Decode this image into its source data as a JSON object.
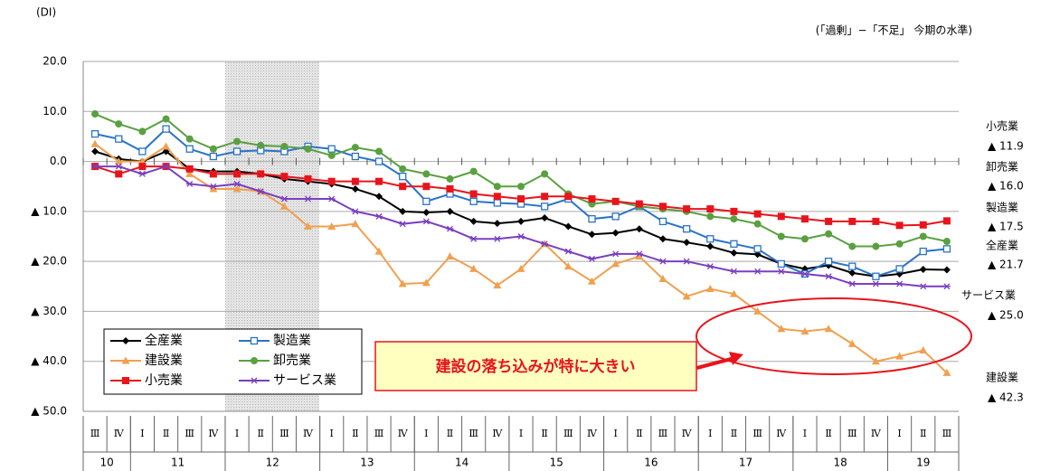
{
  "chart_data": {
    "type": "line",
    "unit_label": "(DI)",
    "subtitle": "(「過剰」−「不足」 今期の水準)",
    "categories": [
      "Ⅲ",
      "Ⅳ",
      "Ⅰ",
      "Ⅱ",
      "Ⅲ",
      "Ⅳ",
      "Ⅰ",
      "Ⅱ",
      "Ⅲ",
      "Ⅳ",
      "Ⅰ",
      "Ⅱ",
      "Ⅲ",
      "Ⅳ",
      "Ⅰ",
      "Ⅱ",
      "Ⅲ",
      "Ⅳ",
      "Ⅰ",
      "Ⅱ",
      "Ⅲ",
      "Ⅳ",
      "Ⅰ",
      "Ⅱ",
      "Ⅲ",
      "Ⅳ",
      "Ⅰ",
      "Ⅱ",
      "Ⅲ",
      "Ⅳ",
      "Ⅰ",
      "Ⅱ",
      "Ⅲ",
      "Ⅳ",
      "Ⅰ",
      "Ⅱ",
      "Ⅲ"
    ],
    "year_labels": [
      "10",
      "11",
      "12",
      "13",
      "14",
      "15",
      "16",
      "17",
      "18",
      "19"
    ],
    "ylim": [
      -50,
      20
    ],
    "yticks": [
      {
        "value": 20,
        "label": "20.0"
      },
      {
        "value": 10,
        "label": "10.0"
      },
      {
        "value": 0,
        "label": "0.0"
      },
      {
        "value": -10,
        "label": "▲ 10.0"
      },
      {
        "value": -20,
        "label": "▲ 20.0"
      },
      {
        "value": -30,
        "label": "▲ 30.0"
      },
      {
        "value": -40,
        "label": "▲ 40.0"
      },
      {
        "value": -50,
        "label": "▲ 50.0"
      }
    ],
    "grid": true,
    "annotation": "建設の落ち込みが特に大きい",
    "series": [
      {
        "name": "全産業",
        "color": "#000000",
        "marker": "diamond",
        "end_label": "▲ 21.7",
        "values": [
          2,
          0.5,
          0,
          2,
          -1.5,
          -2,
          -2,
          -2.5,
          -3.5,
          -4,
          -4.5,
          -5.5,
          -7,
          -10,
          -10.2,
          -10,
          -12,
          -12.4,
          -12,
          -11.3,
          -13,
          -14.6,
          -14.3,
          -13.5,
          -15.5,
          -16.2,
          -17,
          -18.3,
          -18.6,
          -20.5,
          -21.5,
          -20.8,
          -22.3,
          -23,
          -22.5,
          -21.6,
          -21.7
        ]
      },
      {
        "name": "製造業",
        "color": "#2a73c8",
        "marker": "square-open",
        "end_label": "▲ 17.5",
        "values": [
          5.5,
          4.5,
          2,
          6.5,
          2.5,
          1,
          2,
          2.2,
          2,
          3,
          2.5,
          1,
          0,
          -3,
          -8,
          -6.5,
          -8,
          -8.3,
          -8.5,
          -9,
          -7.5,
          -11.5,
          -11,
          -9,
          -12,
          -13.5,
          -15.5,
          -16.5,
          -17.5,
          -20.5,
          -22.5,
          -20,
          -21,
          -23,
          -21.5,
          -18,
          -17.5
        ]
      },
      {
        "name": "建設業",
        "color": "#f0a050",
        "marker": "triangle",
        "end_label": "▲ 42.3",
        "values": [
          3.5,
          0,
          0,
          3,
          -2.5,
          -5.5,
          -5.5,
          -6,
          -9,
          -13,
          -13,
          -12.5,
          -18,
          -24.5,
          -24.3,
          -19,
          -21.5,
          -24.8,
          -21.5,
          -16.5,
          -21,
          -24,
          -20.5,
          -19,
          -23.5,
          -27,
          -25.5,
          -26.5,
          -30,
          -33.5,
          -34,
          -33.5,
          -36.5,
          -40,
          -39,
          -37.8,
          -42.3
        ]
      },
      {
        "name": "卸売業",
        "color": "#5aa040",
        "marker": "circle",
        "end_label": "▲ 16.0",
        "values": [
          9.5,
          7.5,
          6,
          8.5,
          4.5,
          2.5,
          4,
          3.2,
          3,
          2.5,
          1.2,
          2.8,
          2,
          -1.5,
          -2.5,
          -3.5,
          -2,
          -5,
          -5,
          -2.5,
          -6.5,
          -8.5,
          -8,
          -9,
          -9.5,
          -10,
          -11,
          -11.5,
          -12.5,
          -15,
          -15.5,
          -14.5,
          -17,
          -17,
          -16.5,
          -15,
          -16
        ]
      },
      {
        "name": "小売業",
        "color": "#e8141c",
        "marker": "square",
        "end_label": "▲ 11.9",
        "values": [
          -1,
          -2.5,
          -1,
          -1,
          -1.5,
          -2.5,
          -2.5,
          -2.5,
          -3,
          -3.5,
          -4,
          -4,
          -4,
          -5,
          -5,
          -5.5,
          -6.5,
          -7,
          -7.5,
          -7,
          -7,
          -7.5,
          -8,
          -8.5,
          -9,
          -9.5,
          -9.5,
          -10,
          -10.5,
          -11,
          -11.5,
          -12,
          -12,
          -12,
          -12.8,
          -12.7,
          -11.9
        ]
      },
      {
        "name": "サービス業",
        "color": "#7a3fc0",
        "marker": "star",
        "end_label": "▲ 25.0",
        "values": [
          -1,
          -1,
          -2.5,
          -1,
          -4.5,
          -5,
          -4.5,
          -6,
          -7.5,
          -7.5,
          -7.5,
          -10,
          -11,
          -12.5,
          -12,
          -13.5,
          -15.5,
          -15.5,
          -15,
          -16.5,
          -18,
          -19.5,
          -18.5,
          -18.5,
          -20,
          -20,
          -21,
          -22,
          -22,
          -22,
          -22.5,
          -23,
          -24.5,
          -24.5,
          -24.5,
          -25,
          -25
        ]
      }
    ]
  }
}
